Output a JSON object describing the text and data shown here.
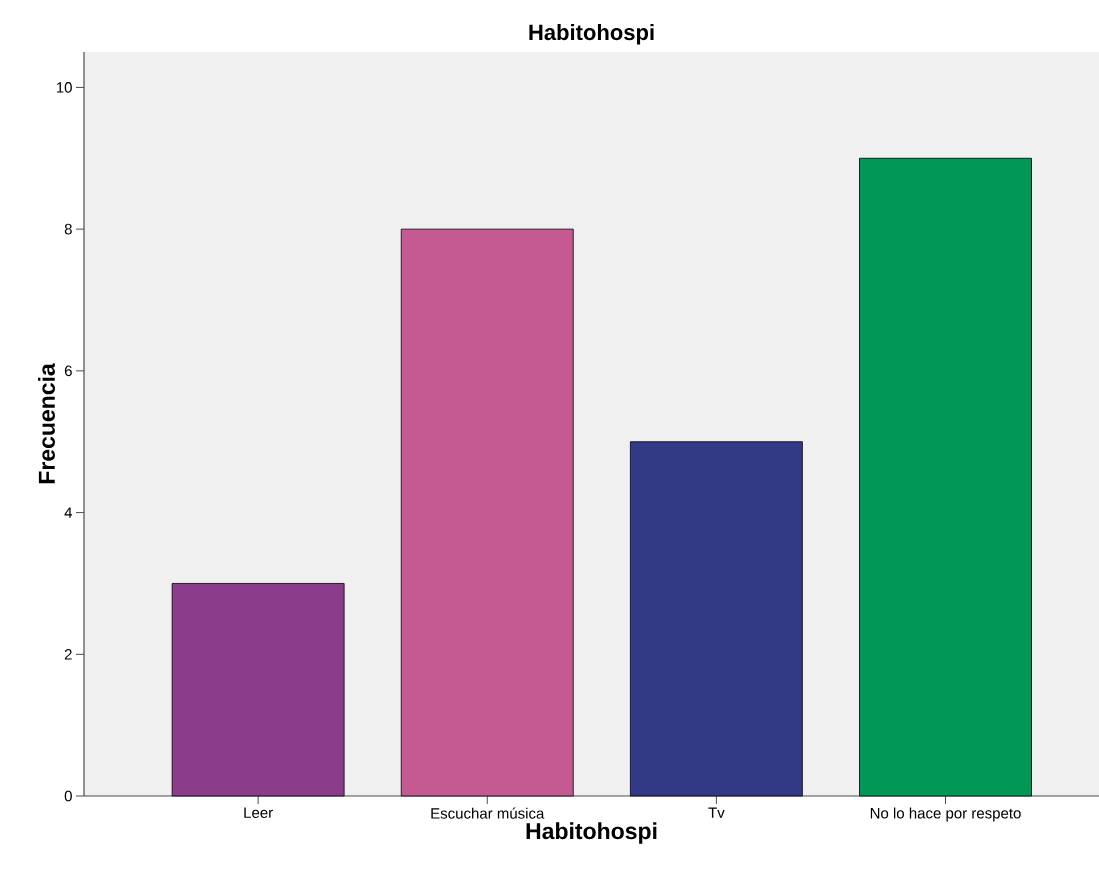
{
  "chart_data": {
    "type": "bar",
    "title": "Habitohospi",
    "xlabel": "Habitohospi",
    "ylabel": "Frecuencia",
    "categories": [
      "Leer",
      "Escuchar música",
      "Tv",
      "No lo hace por respeto"
    ],
    "values": [
      3,
      8,
      5,
      9
    ],
    "colors": [
      "#8b3c8a",
      "#c55991",
      "#333a85",
      "#009757"
    ],
    "ylim": [
      0,
      10.5
    ],
    "yticks": [
      0,
      2,
      4,
      6,
      8,
      10
    ]
  }
}
